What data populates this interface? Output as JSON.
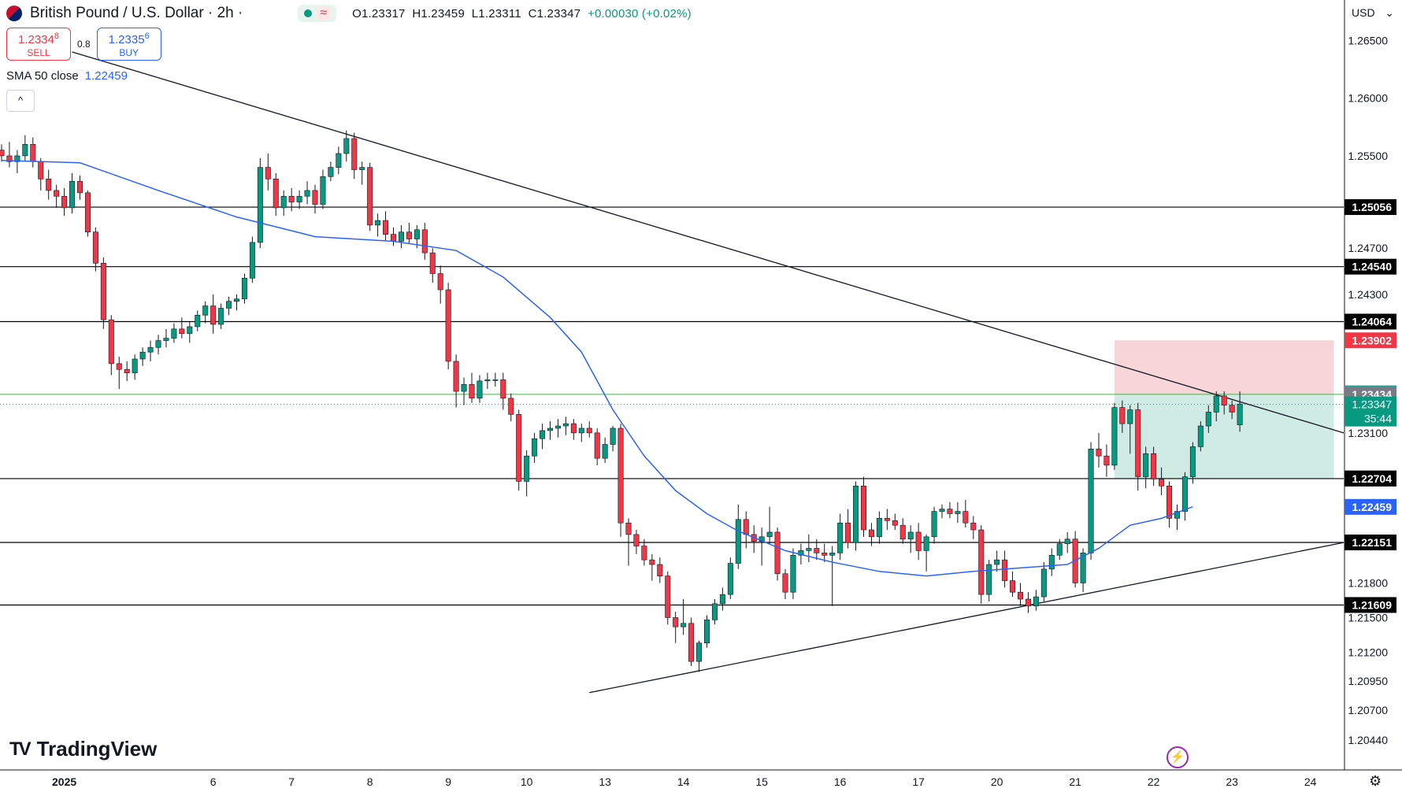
{
  "header": {
    "symbol": "British Pound / U.S. Dollar · 2h ·",
    "status_symbol": "≈",
    "ohlc": {
      "open": "O1.23317",
      "high": "H1.23459",
      "low": "L1.23311",
      "close": "C1.23347",
      "change": "+0.00030 (+0.02%)"
    }
  },
  "trade": {
    "sell_price": "1.2334",
    "sell_sup": "8",
    "sell_label": "SELL",
    "spread": "0.8",
    "buy_price": "1.2335",
    "buy_sup": "6",
    "buy_label": "BUY"
  },
  "indicator": {
    "name": "SMA 50 close",
    "value": "1.22459"
  },
  "collapse_label": "^",
  "currency": "USD",
  "currency_caret": "⌄",
  "logo_text": "TradingView",
  "logo_mark": "TV",
  "settings_icon": "⚙",
  "bolt_icon": "⚡",
  "chart_data": {
    "type": "candlestick",
    "instrument": "British Pound / U.S. Dollar",
    "interval": "2h",
    "y_axis": {
      "min": 1.2018,
      "max": 1.2685,
      "ticks": [
        "1.26500",
        "1.26000",
        "1.25500",
        "1.24700",
        "1.24300",
        "1.23100",
        "1.21800",
        "1.21500",
        "1.21200",
        "1.20950",
        "1.20700",
        "1.20440"
      ],
      "tick_values": [
        1.265,
        1.26,
        1.255,
        1.247,
        1.243,
        1.231,
        1.218,
        1.215,
        1.212,
        1.2095,
        1.207,
        1.2044
      ]
    },
    "x_axis": {
      "labels": [
        "2025",
        "6",
        "7",
        "8",
        "9",
        "10",
        "13",
        "14",
        "15",
        "16",
        "17",
        "20",
        "21",
        "22",
        "23",
        "24"
      ],
      "label_index": [
        8,
        27,
        37,
        47,
        57,
        67,
        77,
        87,
        97,
        107,
        117,
        127,
        137,
        147,
        157,
        167
      ]
    },
    "candles": [
      [
        1.2555,
        1.256,
        1.2545,
        1.255
      ],
      [
        1.255,
        1.2562,
        1.254,
        1.2545
      ],
      [
        1.2545,
        1.2555,
        1.2535,
        1.255
      ],
      [
        1.255,
        1.2568,
        1.2545,
        1.256
      ],
      [
        1.256,
        1.2566,
        1.254,
        1.2545
      ],
      [
        1.2545,
        1.2548,
        1.252,
        1.253
      ],
      [
        1.253,
        1.2538,
        1.2512,
        1.252
      ],
      [
        1.252,
        1.2525,
        1.2505,
        1.2515
      ],
      [
        1.2515,
        1.2522,
        1.2498,
        1.2505
      ],
      [
        1.2505,
        1.2535,
        1.25,
        1.2528
      ],
      [
        1.2528,
        1.2533,
        1.2512,
        1.2518
      ],
      [
        1.2518,
        1.252,
        1.248,
        1.2484
      ],
      [
        1.2484,
        1.2488,
        1.245,
        1.2457
      ],
      [
        1.2457,
        1.2462,
        1.24,
        1.2408
      ],
      [
        1.2408,
        1.2412,
        1.236,
        1.237
      ],
      [
        1.237,
        1.2376,
        1.2348,
        1.2365
      ],
      [
        1.2365,
        1.2372,
        1.2355,
        1.2362
      ],
      [
        1.2362,
        1.2378,
        1.2356,
        1.2374
      ],
      [
        1.2374,
        1.2384,
        1.2368,
        1.238
      ],
      [
        1.238,
        1.239,
        1.2372,
        1.2384
      ],
      [
        1.2384,
        1.2395,
        1.2378,
        1.239
      ],
      [
        1.239,
        1.24,
        1.2384,
        1.2392
      ],
      [
        1.2392,
        1.2405,
        1.2388,
        1.24
      ],
      [
        1.24,
        1.241,
        1.2392,
        1.2396
      ],
      [
        1.2396,
        1.2406,
        1.2388,
        1.2402
      ],
      [
        1.2402,
        1.2416,
        1.2398,
        1.2412
      ],
      [
        1.2412,
        1.2424,
        1.2405,
        1.242
      ],
      [
        1.242,
        1.243,
        1.2396,
        1.2404
      ],
      [
        1.2404,
        1.2422,
        1.24,
        1.2418
      ],
      [
        1.2418,
        1.2428,
        1.2412,
        1.2424
      ],
      [
        1.2424,
        1.243,
        1.2416,
        1.2426
      ],
      [
        1.2426,
        1.2448,
        1.2422,
        1.2444
      ],
      [
        1.2444,
        1.248,
        1.244,
        1.2475
      ],
      [
        1.2475,
        1.2548,
        1.247,
        1.254
      ],
      [
        1.254,
        1.2552,
        1.252,
        1.253
      ],
      [
        1.253,
        1.2535,
        1.2498,
        1.2505
      ],
      [
        1.2505,
        1.252,
        1.2498,
        1.2515
      ],
      [
        1.2515,
        1.2522,
        1.2502,
        1.251
      ],
      [
        1.251,
        1.252,
        1.2504,
        1.2515
      ],
      [
        1.2515,
        1.2528,
        1.2508,
        1.252
      ],
      [
        1.252,
        1.2525,
        1.25,
        1.2508
      ],
      [
        1.2508,
        1.2538,
        1.2504,
        1.2532
      ],
      [
        1.2532,
        1.2545,
        1.2528,
        1.254
      ],
      [
        1.254,
        1.2558,
        1.2534,
        1.2552
      ],
      [
        1.2552,
        1.2572,
        1.2545,
        1.2565
      ],
      [
        1.2565,
        1.257,
        1.253,
        1.2538
      ],
      [
        1.2538,
        1.2545,
        1.2525,
        1.254
      ],
      [
        1.254,
        1.2544,
        1.2485,
        1.249
      ],
      [
        1.249,
        1.25,
        1.248,
        1.2494
      ],
      [
        1.2494,
        1.2502,
        1.2476,
        1.2482
      ],
      [
        1.2482,
        1.2488,
        1.2472,
        1.2476
      ],
      [
        1.2476,
        1.249,
        1.247,
        1.2484
      ],
      [
        1.2484,
        1.2492,
        1.2474,
        1.2478
      ],
      [
        1.2478,
        1.249,
        1.247,
        1.2486
      ],
      [
        1.2486,
        1.2492,
        1.246,
        1.2466
      ],
      [
        1.2466,
        1.247,
        1.244,
        1.2448
      ],
      [
        1.2448,
        1.2455,
        1.2422,
        1.2434
      ],
      [
        1.2434,
        1.244,
        1.2365,
        1.2372
      ],
      [
        1.2372,
        1.2378,
        1.2332,
        1.2346
      ],
      [
        1.2346,
        1.2358,
        1.2334,
        1.2352
      ],
      [
        1.2352,
        1.2362,
        1.2336,
        1.234
      ],
      [
        1.234,
        1.236,
        1.2336,
        1.2355
      ],
      [
        1.2355,
        1.2362,
        1.2348,
        1.2356
      ],
      [
        1.2356,
        1.2362,
        1.235,
        1.2356
      ],
      [
        1.2356,
        1.2362,
        1.233,
        1.234
      ],
      [
        1.234,
        1.2344,
        1.232,
        1.2326
      ],
      [
        1.2326,
        1.233,
        1.226,
        1.2268
      ],
      [
        1.2268,
        1.2295,
        1.2255,
        1.229
      ],
      [
        1.229,
        1.231,
        1.2284,
        1.2305
      ],
      [
        1.2305,
        1.2318,
        1.2296,
        1.2312
      ],
      [
        1.2312,
        1.232,
        1.2304,
        1.2314
      ],
      [
        1.2314,
        1.2322,
        1.2306,
        1.2316
      ],
      [
        1.2316,
        1.2324,
        1.2308,
        1.2318
      ],
      [
        1.2318,
        1.2322,
        1.2304,
        1.231
      ],
      [
        1.231,
        1.2318,
        1.2302,
        1.2314
      ],
      [
        1.2314,
        1.232,
        1.2306,
        1.231
      ],
      [
        1.231,
        1.2314,
        1.2282,
        1.2288
      ],
      [
        1.2288,
        1.2306,
        1.2284,
        1.23
      ],
      [
        1.23,
        1.2316,
        1.2294,
        1.2314
      ],
      [
        1.2314,
        1.2318,
        1.222,
        1.2232
      ],
      [
        1.2232,
        1.2236,
        1.2195,
        1.2222
      ],
      [
        1.2222,
        1.2226,
        1.2205,
        1.2212
      ],
      [
        1.2212,
        1.2218,
        1.2195,
        1.22
      ],
      [
        1.22,
        1.2205,
        1.2182,
        1.2196
      ],
      [
        1.2196,
        1.2202,
        1.218,
        1.2186
      ],
      [
        1.2186,
        1.219,
        1.2144,
        1.215
      ],
      [
        1.215,
        1.2155,
        1.2128,
        1.2142
      ],
      [
        1.2142,
        1.2166,
        1.2135,
        1.2145
      ],
      [
        1.2145,
        1.215,
        1.2108,
        1.2112
      ],
      [
        1.2112,
        1.213,
        1.2103,
        1.2128
      ],
      [
        1.2128,
        1.2152,
        1.2124,
        1.2148
      ],
      [
        1.2148,
        1.2166,
        1.2144,
        1.2162
      ],
      [
        1.2162,
        1.2176,
        1.2156,
        1.217
      ],
      [
        1.217,
        1.2202,
        1.2166,
        1.2197
      ],
      [
        1.2197,
        1.2248,
        1.2192,
        1.2235
      ],
      [
        1.2235,
        1.2242,
        1.221,
        1.2222
      ],
      [
        1.2222,
        1.223,
        1.2206,
        1.2216
      ],
      [
        1.2216,
        1.2228,
        1.2195,
        1.222
      ],
      [
        1.222,
        1.2246,
        1.2214,
        1.2224
      ],
      [
        1.2224,
        1.2228,
        1.2182,
        1.2188
      ],
      [
        1.2188,
        1.2192,
        1.2166,
        1.2172
      ],
      [
        1.2172,
        1.221,
        1.2166,
        1.2204
      ],
      [
        1.2204,
        1.2214,
        1.2196,
        1.2208
      ],
      [
        1.2208,
        1.2222,
        1.2198,
        1.221
      ],
      [
        1.221,
        1.2218,
        1.22,
        1.2206
      ],
      [
        1.2206,
        1.2214,
        1.2198,
        1.2204
      ],
      [
        1.2204,
        1.2212,
        1.216,
        1.2206
      ],
      [
        1.2206,
        1.224,
        1.22,
        1.2232
      ],
      [
        1.2232,
        1.2244,
        1.221,
        1.2215
      ],
      [
        1.2215,
        1.2268,
        1.2208,
        1.2264
      ],
      [
        1.2264,
        1.2272,
        1.222,
        1.2226
      ],
      [
        1.2226,
        1.2232,
        1.2212,
        1.222
      ],
      [
        1.222,
        1.2242,
        1.2214,
        1.2236
      ],
      [
        1.2236,
        1.2244,
        1.2226,
        1.2234
      ],
      [
        1.2234,
        1.224,
        1.2226,
        1.223
      ],
      [
        1.223,
        1.2236,
        1.2214,
        1.2218
      ],
      [
        1.2218,
        1.223,
        1.2206,
        1.2224
      ],
      [
        1.2224,
        1.2232,
        1.22,
        1.2208
      ],
      [
        1.2208,
        1.2222,
        1.219,
        1.222
      ],
      [
        1.222,
        1.2246,
        1.2214,
        1.2242
      ],
      [
        1.2242,
        1.2248,
        1.2236,
        1.2244
      ],
      [
        1.2244,
        1.225,
        1.2236,
        1.224
      ],
      [
        1.224,
        1.225,
        1.2232,
        1.2242
      ],
      [
        1.2242,
        1.2252,
        1.2228,
        1.2232
      ],
      [
        1.2232,
        1.2238,
        1.2218,
        1.2226
      ],
      [
        1.2226,
        1.223,
        1.2162,
        1.217
      ],
      [
        1.217,
        1.22,
        1.2164,
        1.2196
      ],
      [
        1.2196,
        1.2208,
        1.219,
        1.22
      ],
      [
        1.22,
        1.2208,
        1.2176,
        1.2182
      ],
      [
        1.2182,
        1.219,
        1.2168,
        1.2172
      ],
      [
        1.2172,
        1.218,
        1.216,
        1.2166
      ],
      [
        1.2166,
        1.2172,
        1.2154,
        1.216
      ],
      [
        1.216,
        1.2174,
        1.2156,
        1.2168
      ],
      [
        1.2168,
        1.2198,
        1.2164,
        1.2192
      ],
      [
        1.2192,
        1.221,
        1.2186,
        1.2204
      ],
      [
        1.2204,
        1.2218,
        1.22,
        1.2214
      ],
      [
        1.2214,
        1.2224,
        1.2206,
        1.2218
      ],
      [
        1.2218,
        1.2225,
        1.2176,
        1.218
      ],
      [
        1.218,
        1.221,
        1.2172,
        1.2206
      ],
      [
        1.2206,
        1.2302,
        1.22,
        1.2296
      ],
      [
        1.2296,
        1.231,
        1.228,
        1.229
      ],
      [
        1.229,
        1.23,
        1.2272,
        1.2282
      ],
      [
        1.2282,
        1.2336,
        1.2278,
        1.2332
      ],
      [
        1.2332,
        1.2338,
        1.231,
        1.2318
      ],
      [
        1.2318,
        1.2334,
        1.2292,
        1.233
      ],
      [
        1.233,
        1.2336,
        1.226,
        1.2272
      ],
      [
        1.2272,
        1.2298,
        1.2262,
        1.2292
      ],
      [
        1.2292,
        1.2298,
        1.2264,
        1.227
      ],
      [
        1.227,
        1.228,
        1.2256,
        1.2264
      ],
      [
        1.2264,
        1.2268,
        1.2228,
        1.2236
      ],
      [
        1.2236,
        1.2248,
        1.2226,
        1.2242
      ],
      [
        1.2242,
        1.2276,
        1.2234,
        1.2272
      ],
      [
        1.2272,
        1.2302,
        1.2266,
        1.2298
      ],
      [
        1.2298,
        1.232,
        1.2294,
        1.2316
      ],
      [
        1.2316,
        1.2334,
        1.231,
        1.2328
      ],
      [
        1.2328,
        1.2346,
        1.232,
        1.2342
      ],
      [
        1.2342,
        1.2346,
        1.2326,
        1.2334
      ],
      [
        1.2334,
        1.2338,
        1.2322,
        1.2328
      ],
      [
        1.2317,
        1.2346,
        1.2311,
        1.2335
      ]
    ],
    "sma50": {
      "name": "SMA 50 close",
      "value": 1.22459,
      "points": [
        [
          0,
          1.2546
        ],
        [
          10,
          1.2544
        ],
        [
          20,
          1.252
        ],
        [
          30,
          1.2497
        ],
        [
          40,
          1.248
        ],
        [
          50,
          1.2476
        ],
        [
          58,
          1.2468
        ],
        [
          64,
          1.2445
        ],
        [
          70,
          1.241
        ],
        [
          74,
          1.238
        ],
        [
          78,
          1.233
        ],
        [
          82,
          1.229
        ],
        [
          86,
          1.226
        ],
        [
          90,
          1.224
        ],
        [
          94,
          1.2225
        ],
        [
          100,
          1.2208
        ],
        [
          106,
          1.2198
        ],
        [
          112,
          1.219
        ],
        [
          118,
          1.2186
        ],
        [
          124,
          1.219
        ],
        [
          130,
          1.2193
        ],
        [
          136,
          1.2196
        ],
        [
          140,
          1.221
        ],
        [
          144,
          1.223
        ],
        [
          148,
          1.2236
        ],
        [
          152,
          1.2246
        ]
      ]
    },
    "horizontal_levels": [
      1.25056,
      1.2454,
      1.24064,
      1.22704,
      1.22151,
      1.21609
    ],
    "level_labels": [
      "1.25056",
      "1.24540",
      "1.24064",
      "1.22707",
      "1.22704",
      "1.22151",
      "1.21609"
    ],
    "trendlines": [
      {
        "from": [
          9,
          1.264
        ],
        "to": [
          175,
          1.231
        ]
      },
      {
        "from": [
          75,
          1.2085
        ],
        "to": [
          175,
          1.2215
        ]
      }
    ],
    "position": {
      "entry": 1.23434,
      "stop": 1.23902,
      "target": 1.22707,
      "start_index": 142,
      "end_index": 170
    },
    "price_labels": {
      "stop": "1.23902",
      "target_level": "1.23443",
      "entry": "1.23434",
      "current": "1.23347",
      "countdown": "35:44",
      "sma": "1.22459"
    },
    "colors": {
      "up": "#089981",
      "down": "#f23645",
      "sma": "#2962ff",
      "level": "#000000",
      "risk": "#f8d3d6",
      "reward": "#cde9e3"
    }
  }
}
